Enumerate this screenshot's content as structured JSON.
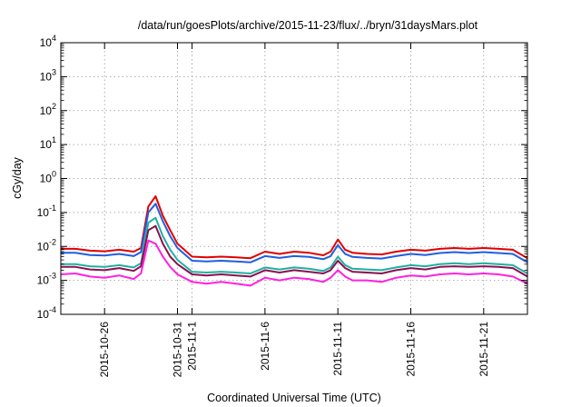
{
  "chart_data": {
    "type": "line",
    "title": "/data/run/goesPlots/archive/2015-11-23/flux/../bryn/31daysMars.plot",
    "xlabel": "Coordinated Universal Time (UTC)",
    "ylabel": "cGy/day",
    "y_scale": "log",
    "ylim": [
      0.0001,
      10000
    ],
    "y_tick_labels": [
      {
        "base": "10",
        "exp": "-4"
      },
      {
        "base": "10",
        "exp": "-3"
      },
      {
        "base": "10",
        "exp": "-2"
      },
      {
        "base": "10",
        "exp": "-1"
      },
      {
        "base": "10",
        "exp": "0"
      },
      {
        "base": "10",
        "exp": "1"
      },
      {
        "base": "10",
        "exp": "2"
      },
      {
        "base": "10",
        "exp": "3"
      },
      {
        "base": "10",
        "exp": "4"
      }
    ],
    "xlim": [
      "2015-10-23",
      "2015-11-24"
    ],
    "x_ticks": [
      "2015-10-26",
      "2015-10-31",
      "2015-11-1",
      "2015-11-6",
      "2015-11-11",
      "2015-11-16",
      "2015-11-21"
    ],
    "x_tick_days": [
      3,
      8,
      9,
      14,
      19,
      24,
      29
    ],
    "grid": true,
    "legend": "none",
    "series": [
      {
        "color": "#e00000",
        "x": [
          0,
          1,
          2,
          3,
          4,
          5,
          5.5,
          6,
          6.5,
          7,
          7.5,
          8,
          9,
          10,
          11,
          12,
          13,
          14,
          15,
          16,
          17,
          18,
          18.5,
          19,
          19.5,
          20,
          21,
          22,
          23,
          24,
          25,
          26,
          27,
          28,
          29,
          30,
          31,
          32
        ],
        "y": [
          0.0085,
          0.0085,
          0.0075,
          0.0072,
          0.008,
          0.007,
          0.009,
          0.15,
          0.3,
          0.08,
          0.03,
          0.012,
          0.005,
          0.0048,
          0.005,
          0.0048,
          0.0045,
          0.007,
          0.006,
          0.007,
          0.0065,
          0.0055,
          0.007,
          0.016,
          0.008,
          0.0065,
          0.006,
          0.0058,
          0.007,
          0.008,
          0.0075,
          0.0085,
          0.009,
          0.0085,
          0.009,
          0.0085,
          0.008,
          0.0045
        ]
      },
      {
        "color": "#1f5fe0",
        "x": [
          0,
          1,
          2,
          3,
          4,
          5,
          5.5,
          6,
          6.5,
          7,
          7.5,
          8,
          9,
          10,
          11,
          12,
          13,
          14,
          15,
          16,
          17,
          18,
          18.5,
          19,
          19.5,
          20,
          21,
          22,
          23,
          24,
          25,
          26,
          27,
          28,
          29,
          30,
          31,
          32
        ],
        "y": [
          0.0065,
          0.0065,
          0.0056,
          0.0054,
          0.006,
          0.0052,
          0.0068,
          0.1,
          0.18,
          0.055,
          0.02,
          0.009,
          0.0038,
          0.0036,
          0.0038,
          0.0036,
          0.0034,
          0.0052,
          0.0046,
          0.0052,
          0.0049,
          0.0042,
          0.0052,
          0.011,
          0.006,
          0.0049,
          0.0046,
          0.0044,
          0.0052,
          0.006,
          0.0056,
          0.0064,
          0.0068,
          0.0064,
          0.0068,
          0.0064,
          0.006,
          0.0034
        ]
      },
      {
        "color": "#20b0a0",
        "x": [
          0,
          1,
          2,
          3,
          4,
          5,
          5.5,
          6,
          6.5,
          7,
          7.5,
          8,
          9,
          10,
          11,
          12,
          13,
          14,
          15,
          16,
          17,
          18,
          18.5,
          19,
          19.5,
          20,
          21,
          22,
          23,
          24,
          25,
          26,
          27,
          28,
          29,
          30,
          31,
          32
        ],
        "y": [
          0.003,
          0.003,
          0.0026,
          0.0025,
          0.0028,
          0.0024,
          0.0032,
          0.05,
          0.07,
          0.02,
          0.008,
          0.004,
          0.0018,
          0.0017,
          0.0018,
          0.0017,
          0.0016,
          0.0024,
          0.0021,
          0.0024,
          0.0022,
          0.0019,
          0.0024,
          0.005,
          0.0028,
          0.0022,
          0.0021,
          0.002,
          0.0024,
          0.0028,
          0.0026,
          0.003,
          0.0032,
          0.003,
          0.0032,
          0.003,
          0.0028,
          0.0016
        ]
      },
      {
        "color": "#8a1050",
        "x": [
          0,
          1,
          2,
          3,
          4,
          5,
          5.5,
          6,
          6.5,
          7,
          7.5,
          8,
          9,
          10,
          11,
          12,
          13,
          14,
          15,
          16,
          17,
          18,
          18.5,
          19,
          19.5,
          20,
          21,
          22,
          23,
          24,
          25,
          26,
          27,
          28,
          29,
          30,
          31,
          32
        ],
        "y": [
          0.0025,
          0.0025,
          0.0021,
          0.002,
          0.0023,
          0.0019,
          0.0026,
          0.03,
          0.04,
          0.012,
          0.005,
          0.003,
          0.0015,
          0.0014,
          0.0015,
          0.0014,
          0.0013,
          0.002,
          0.0017,
          0.002,
          0.0018,
          0.0016,
          0.002,
          0.0038,
          0.0023,
          0.0018,
          0.0017,
          0.0016,
          0.002,
          0.0023,
          0.0021,
          0.0025,
          0.0026,
          0.0025,
          0.0026,
          0.0025,
          0.0023,
          0.0013
        ]
      },
      {
        "color": "#ff20e0",
        "x": [
          0,
          1,
          2,
          3,
          4,
          5,
          5.5,
          6,
          6.5,
          7,
          7.5,
          8,
          9,
          10,
          11,
          12,
          13,
          14,
          15,
          16,
          17,
          18,
          18.5,
          19,
          19.5,
          20,
          21,
          22,
          23,
          24,
          25,
          26,
          27,
          28,
          29,
          30,
          31,
          32
        ],
        "y": [
          0.0015,
          0.0016,
          0.0013,
          0.0012,
          0.0014,
          0.0011,
          0.0016,
          0.015,
          0.012,
          0.005,
          0.0025,
          0.0015,
          0.0009,
          0.0008,
          0.0009,
          0.0008,
          0.0007,
          0.0012,
          0.001,
          0.0012,
          0.0011,
          0.0009,
          0.0012,
          0.002,
          0.0013,
          0.001,
          0.001,
          0.0009,
          0.0012,
          0.0014,
          0.0013,
          0.0015,
          0.0016,
          0.0015,
          0.0016,
          0.0015,
          0.0013,
          0.0008
        ]
      }
    ]
  }
}
